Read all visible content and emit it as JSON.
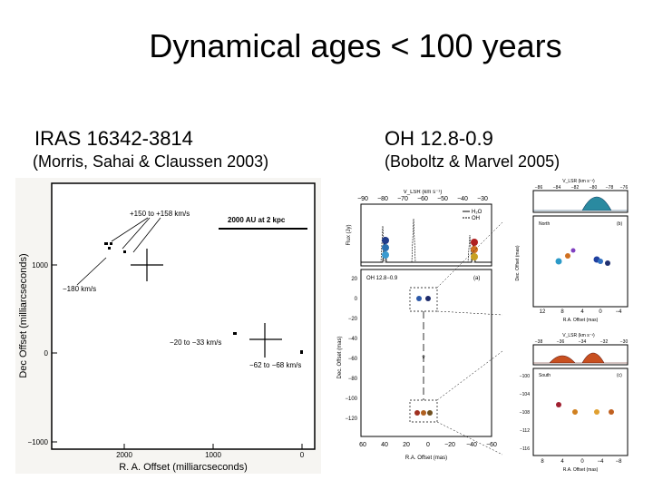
{
  "slide": {
    "title": "Dynamical ages < 100 years"
  },
  "left": {
    "name": "IRAS 16342-3814",
    "reference": "(Morris, Sahai & Claussen 2003)",
    "plot": {
      "xlabel": "R. A. Offset (milliarcseconds)",
      "ylabel": "Dec Offset (milliarcseconds)",
      "xticks": [
        "2000",
        "1000",
        "0"
      ],
      "yticks": [
        "1000",
        "0",
        "−1000"
      ],
      "scale_label": "2000 AU at 2 kpc",
      "ann_top": "+150 to +158 km/s",
      "ann_left": "−180 km/s",
      "ann_mid": "−20 to −33 km/s",
      "ann_right": "−62 to −68 km/s"
    }
  },
  "right": {
    "name": "OH 12.8-0.9",
    "reference": "(Boboltz & Marvel 2005)",
    "main": {
      "top_axis": "V_LSR (km s⁻¹)",
      "top_ticks": [
        "−90",
        "−80",
        "−70",
        "−60",
        "−50",
        "−40",
        "−30"
      ],
      "flux_label": "Flux (Jy)",
      "legend_a": "H₂O",
      "legend_b": "OH",
      "panel_name": "OH 12.8−0.9",
      "panel_tag": "(a)",
      "ylabel": "Dec. Offset (mas)",
      "yticks": [
        "20",
        "0",
        "−20",
        "−40",
        "−60",
        "−80",
        "−100",
        "−120"
      ],
      "xticks": [
        "60",
        "40",
        "20",
        "0",
        "−20",
        "−40",
        "−60"
      ],
      "xlabel": "R.A. Offset (mas)"
    },
    "inset_north": {
      "top_axis": "V_LSR (km s⁻¹)",
      "top_ticks": [
        "−86",
        "−84",
        "−82",
        "−80",
        "−78",
        "−76"
      ],
      "region": "North",
      "tag": "(b)",
      "ylabel": "Dec. Offset (mas)",
      "xticks": [
        "12",
        "8",
        "4",
        "0",
        "−4"
      ],
      "xlabel": "R.A. Offset (mas)"
    },
    "inset_south": {
      "top_axis": "V_LSR (km s⁻¹)",
      "top_ticks": [
        "−38",
        "−36",
        "−34",
        "−32",
        "−30"
      ],
      "region": "South",
      "tag": "(c)",
      "yticks": [
        "−100",
        "−104",
        "−108",
        "−112",
        "−116"
      ],
      "xticks": [
        "8",
        "4",
        "0",
        "−4",
        "−8"
      ],
      "xlabel": "R.A. Offset (mas)"
    }
  }
}
